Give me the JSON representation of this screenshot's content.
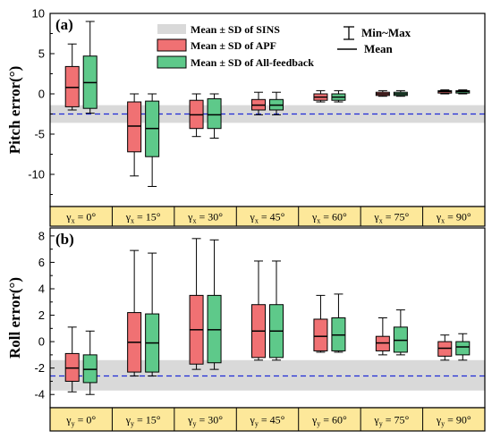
{
  "chart_data": [
    {
      "type": "box",
      "panel_label": "(a)",
      "ylabel": "Pitch error(°)",
      "ylim": [
        -14,
        10
      ],
      "yticks": [
        10,
        5,
        0,
        -5,
        -10
      ],
      "cat_prefix": "γ",
      "cat_sub": "x",
      "categories": [
        " = 0°",
        " = 15°",
        " = 30°",
        " = 45°",
        " = 60°",
        " = 75°",
        " = 90°"
      ],
      "sins_band": {
        "mean": -2.5,
        "lower": -3.6,
        "upper": -1.4
      },
      "series": [
        {
          "name": "Mean ± SD of APF",
          "color": "#f07173",
          "boxes": [
            {
              "min": -2.0,
              "lower": -1.6,
              "mean": 0.8,
              "upper": 3.4,
              "max": 6.2
            },
            {
              "min": -10.2,
              "lower": -7.2,
              "mean": -4.0,
              "upper": -1.0,
              "max": 0.0
            },
            {
              "min": -5.3,
              "lower": -4.3,
              "mean": -2.6,
              "upper": -0.8,
              "max": 0.0
            },
            {
              "min": -2.6,
              "lower": -2.0,
              "mean": -1.4,
              "upper": -0.7,
              "max": 0.2
            },
            {
              "min": -1.0,
              "lower": -0.8,
              "mean": -0.4,
              "upper": 0.0,
              "max": 0.4
            },
            {
              "min": -0.3,
              "lower": -0.2,
              "mean": 0.0,
              "upper": 0.2,
              "max": 0.4
            },
            {
              "min": 0.0,
              "lower": 0.1,
              "mean": 0.3,
              "upper": 0.4,
              "max": 0.5
            }
          ]
        },
        {
          "name": "Mean ± SD of All-feedback",
          "color": "#5ec98a",
          "boxes": [
            {
              "min": -2.4,
              "lower": -1.8,
              "mean": 1.4,
              "upper": 4.7,
              "max": 9.0
            },
            {
              "min": -11.5,
              "lower": -7.8,
              "mean": -4.3,
              "upper": -0.9,
              "max": 0.0
            },
            {
              "min": -5.5,
              "lower": -4.3,
              "mean": -2.6,
              "upper": -0.6,
              "max": 0.0
            },
            {
              "min": -2.6,
              "lower": -2.0,
              "mean": -1.4,
              "upper": -0.7,
              "max": 0.2
            },
            {
              "min": -1.0,
              "lower": -0.8,
              "mean": -0.4,
              "upper": 0.0,
              "max": 0.4
            },
            {
              "min": -0.3,
              "lower": -0.2,
              "mean": 0.0,
              "upper": 0.2,
              "max": 0.4
            },
            {
              "min": 0.0,
              "lower": 0.1,
              "mean": 0.3,
              "upper": 0.4,
              "max": 0.5
            }
          ]
        }
      ]
    },
    {
      "type": "box",
      "panel_label": "(b)",
      "ylabel": "Roll error(°)",
      "ylim": [
        -5,
        8.6
      ],
      "yticks": [
        8,
        6,
        4,
        2,
        0,
        -2,
        -4
      ],
      "cat_prefix": "γ",
      "cat_sub": "y",
      "categories": [
        " = 0°",
        " = 15°",
        " = 30°",
        " = 45°",
        " = 60°",
        " = 75°",
        " = 90°"
      ],
      "sins_band": {
        "mean": -2.6,
        "lower": -3.7,
        "upper": -1.4
      },
      "series": [
        {
          "name": "Mean ± SD of APF",
          "color": "#f07173",
          "boxes": [
            {
              "min": -3.8,
              "lower": -3.0,
              "mean": -2.0,
              "upper": -0.9,
              "max": 1.1
            },
            {
              "min": -2.6,
              "lower": -2.3,
              "mean": -0.05,
              "upper": 2.2,
              "max": 6.9
            },
            {
              "min": -2.1,
              "lower": -1.7,
              "mean": 0.9,
              "upper": 3.5,
              "max": 7.8
            },
            {
              "min": -1.4,
              "lower": -1.2,
              "mean": 0.8,
              "upper": 2.8,
              "max": 6.1
            },
            {
              "min": -0.8,
              "lower": -0.7,
              "mean": 0.4,
              "upper": 1.7,
              "max": 3.5
            },
            {
              "min": -1.0,
              "lower": -0.7,
              "mean": -0.1,
              "upper": 0.4,
              "max": 1.8
            },
            {
              "min": -1.4,
              "lower": -1.1,
              "mean": -0.5,
              "upper": 0.0,
              "max": 0.5
            }
          ]
        },
        {
          "name": "Mean ± SD of All-feedback",
          "color": "#5ec98a",
          "boxes": [
            {
              "min": -4.0,
              "lower": -3.1,
              "mean": -2.1,
              "upper": -1.0,
              "max": 0.8
            },
            {
              "min": -2.6,
              "lower": -2.3,
              "mean": -0.1,
              "upper": 2.1,
              "max": 6.7
            },
            {
              "min": -2.1,
              "lower": -1.6,
              "mean": 0.9,
              "upper": 3.5,
              "max": 7.7
            },
            {
              "min": -1.4,
              "lower": -1.2,
              "mean": 0.8,
              "upper": 2.8,
              "max": 6.1
            },
            {
              "min": -0.8,
              "lower": -0.7,
              "mean": 0.5,
              "upper": 1.8,
              "max": 3.6
            },
            {
              "min": -1.0,
              "lower": -0.8,
              "mean": 0.1,
              "upper": 1.1,
              "max": 2.4
            },
            {
              "min": -1.4,
              "lower": -1.0,
              "mean": -0.4,
              "upper": 0.0,
              "max": 0.6
            }
          ]
        }
      ]
    }
  ],
  "legend": {
    "sins": "Mean ± SD of SINS",
    "apf": "Mean ± SD of APF",
    "all_feedback": "Mean ± SD of All-feedback",
    "minmax": "Min~Max",
    "mean": "Mean"
  },
  "colors": {
    "apf": "#f07173",
    "all_feedback": "#5ec98a",
    "band": "#d9d9d9",
    "sins_mean_line": "#1f2bd6",
    "category_strip": "#fde89a"
  }
}
